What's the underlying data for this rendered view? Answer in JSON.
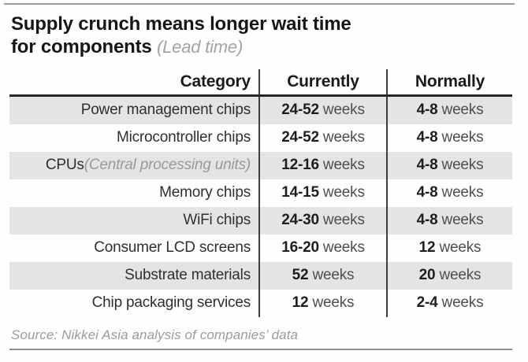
{
  "title": {
    "line1": "Supply crunch means longer wait time",
    "line2": "for components",
    "line2_note": "(Lead time)"
  },
  "table": {
    "headers": [
      "Category",
      "Currently",
      "Normally"
    ],
    "rows": [
      {
        "category": "Power management chips",
        "note": "",
        "currently_num": "24-52",
        "currently_unit": "weeks",
        "normally_num": "4-8",
        "normally_unit": "weeks"
      },
      {
        "category": "Microcontroller chips",
        "note": "",
        "currently_num": "24-52",
        "currently_unit": "weeks",
        "normally_num": "4-8",
        "normally_unit": "weeks"
      },
      {
        "category": "CPUs",
        "note": "(Central processing units)",
        "currently_num": "12-16",
        "currently_unit": "weeks",
        "normally_num": "4-8",
        "normally_unit": "weeks"
      },
      {
        "category": "Memory chips",
        "note": "",
        "currently_num": "14-15",
        "currently_unit": "weeks",
        "normally_num": "4-8",
        "normally_unit": "weeks"
      },
      {
        "category": "WiFi chips",
        "note": "",
        "currently_num": "24-30",
        "currently_unit": "weeks",
        "normally_num": "4-8",
        "normally_unit": "weeks"
      },
      {
        "category": "Consumer LCD screens",
        "note": "",
        "currently_num": "16-20",
        "currently_unit": "weeks",
        "normally_num": "12",
        "normally_unit": "weeks"
      },
      {
        "category": "Substrate materials",
        "note": "",
        "currently_num": "52",
        "currently_unit": "weeks",
        "normally_num": "20",
        "normally_unit": "weeks"
      },
      {
        "category": "Chip packaging services",
        "note": "",
        "currently_num": "12",
        "currently_unit": "weeks",
        "normally_num": "2-4",
        "normally_unit": "weeks"
      }
    ]
  },
  "source": "Source: Nikkei Asia analysis of companies’ data",
  "colors": {
    "shaded_row": "#e4e4e4",
    "divider": "#3e3e3e",
    "header_underline": "#262626",
    "muted_text": "#9b9b9b",
    "unit_text": "#4e4e4e"
  },
  "chart_data": {
    "type": "table",
    "title": "Supply crunch means longer wait time for components (Lead time)",
    "columns": [
      "Category",
      "Currently",
      "Normally"
    ],
    "rows": [
      [
        "Power management chips",
        "24-52 weeks",
        "4-8 weeks"
      ],
      [
        "Microcontroller chips",
        "24-52 weeks",
        "4-8 weeks"
      ],
      [
        "CPUs (Central processing units)",
        "12-16 weeks",
        "4-8 weeks"
      ],
      [
        "Memory chips",
        "14-15 weeks",
        "4-8 weeks"
      ],
      [
        "WiFi chips",
        "24-30 weeks",
        "4-8 weeks"
      ],
      [
        "Consumer LCD screens",
        "16-20 weeks",
        "12 weeks"
      ],
      [
        "Substrate materials",
        "52 weeks",
        "20 weeks"
      ],
      [
        "Chip packaging services",
        "12 weeks",
        "2-4 weeks"
      ]
    ],
    "source": "Source: Nikkei Asia analysis of companies’ data",
    "layout": {
      "shaded_rows": [
        0,
        2,
        4,
        6
      ],
      "value_unit": "weeks"
    }
  }
}
